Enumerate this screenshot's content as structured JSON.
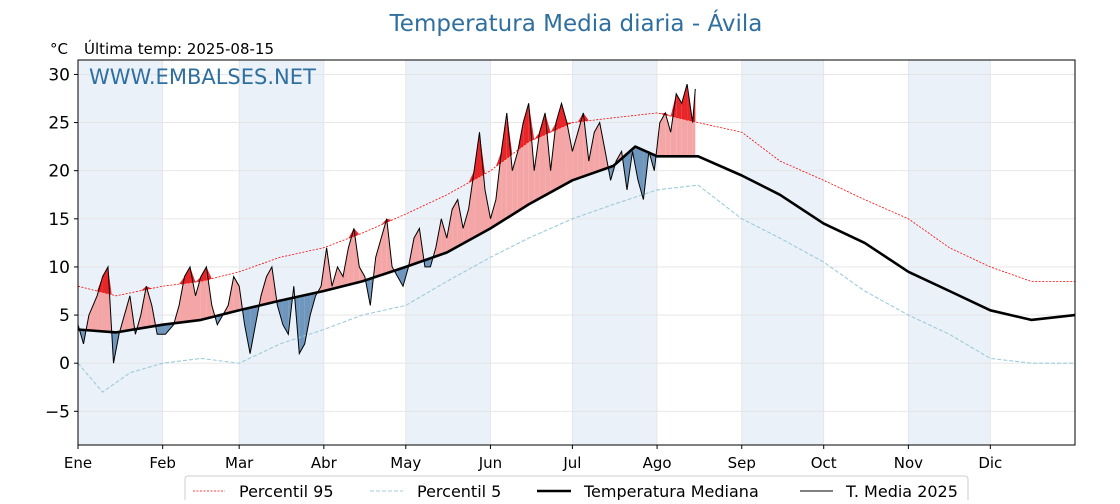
{
  "chart_data": {
    "type": "line",
    "title": "Temperatura Media diaria - Ávila",
    "unit_label": "°C",
    "subtitle": "Última temp: 2025-08-15",
    "watermark": "WWW.EMBALSES.NET",
    "ylim": [
      -8.5,
      31.5
    ],
    "yticks": [
      30,
      25,
      20,
      15,
      10,
      5,
      0,
      -5
    ],
    "ytick_labels": [
      "30",
      "25",
      "20",
      "15",
      "10",
      "5",
      "0",
      "−5"
    ],
    "xlim": [
      1,
      366
    ],
    "months": [
      {
        "label": "Ene",
        "day": 1
      },
      {
        "label": "Feb",
        "day": 32
      },
      {
        "label": "Mar",
        "day": 60
      },
      {
        "label": "Abr",
        "day": 91
      },
      {
        "label": "May",
        "day": 121
      },
      {
        "label": "Jun",
        "day": 152
      },
      {
        "label": "Jul",
        "day": 182
      },
      {
        "label": "Ago",
        "day": 213
      },
      {
        "label": "Sep",
        "day": 244
      },
      {
        "label": "Oct",
        "day": 274
      },
      {
        "label": "Nov",
        "day": 305
      },
      {
        "label": "Dic",
        "day": 335
      }
    ],
    "grid": true,
    "legend_position": "bottom",
    "legend": [
      {
        "label": "Percentil 95",
        "key": "p95"
      },
      {
        "label": "Percentil 5",
        "key": "p5"
      },
      {
        "label": "Temperatura Mediana",
        "key": "median"
      },
      {
        "label": "T. Media 2025",
        "key": "t2025"
      }
    ],
    "colors": {
      "p95": "#ff0000",
      "p5": "#9ecbdc",
      "median": "#000000",
      "t2025": "#000000",
      "above_fill": "#f4a6a6",
      "above_p95_fill": "#e8262a",
      "below_fill": "#6f97bd",
      "title": "#2f6f9f",
      "band": "#eaf1f9"
    },
    "series": [
      {
        "key": "p95",
        "name": "Percentil 95",
        "x": [
          1,
          15,
          32,
          46,
          60,
          75,
          91,
          105,
          121,
          136,
          152,
          166,
          182,
          197,
          213,
          228,
          244,
          258,
          274,
          289,
          305,
          320,
          335,
          350,
          366
        ],
        "y": [
          8,
          7,
          8,
          8.5,
          9.5,
          11,
          12,
          13.5,
          15.5,
          17.5,
          20,
          23,
          25,
          25.5,
          26,
          25,
          24,
          21,
          19,
          17,
          15,
          12,
          10,
          8.5,
          8.5
        ]
      },
      {
        "key": "p5",
        "name": "Percentil 5",
        "x": [
          1,
          10,
          20,
          32,
          46,
          60,
          75,
          91,
          105,
          121,
          136,
          152,
          166,
          182,
          197,
          213,
          228,
          244,
          258,
          274,
          289,
          305,
          320,
          335,
          350,
          366
        ],
        "y": [
          0,
          -3,
          -1,
          0,
          0.5,
          0,
          2,
          3.5,
          5,
          6,
          8.5,
          11,
          13,
          15,
          16.5,
          18,
          18.5,
          15,
          13,
          10.5,
          7.5,
          5,
          3,
          0.5,
          0,
          0
        ]
      },
      {
        "key": "median",
        "name": "Temperatura Mediana",
        "x": [
          1,
          15,
          32,
          46,
          60,
          75,
          91,
          105,
          121,
          136,
          152,
          166,
          182,
          197,
          205,
          213,
          228,
          244,
          258,
          274,
          289,
          305,
          320,
          335,
          350,
          366
        ],
        "y": [
          3.5,
          3.2,
          4,
          4.5,
          5.5,
          6.5,
          7.5,
          8.5,
          10,
          11.5,
          14,
          16.5,
          19,
          20.5,
          22.5,
          21.5,
          21.5,
          19.5,
          17.5,
          14.5,
          12.5,
          9.5,
          7.5,
          5.5,
          4.5,
          5
        ]
      },
      {
        "key": "t2025",
        "name": "T. Media 2025",
        "x": [
          1,
          3,
          5,
          8,
          10,
          12,
          14,
          16,
          18,
          20,
          22,
          24,
          26,
          28,
          30,
          33,
          36,
          38,
          40,
          42,
          44,
          46,
          48,
          50,
          52,
          54,
          56,
          58,
          60,
          62,
          64,
          66,
          68,
          70,
          72,
          74,
          76,
          78,
          80,
          82,
          84,
          86,
          88,
          90,
          92,
          94,
          96,
          98,
          100,
          102,
          104,
          106,
          108,
          110,
          112,
          114,
          116,
          118,
          120,
          122,
          124,
          126,
          128,
          130,
          132,
          134,
          136,
          138,
          140,
          142,
          144,
          146,
          148,
          150,
          152,
          154,
          156,
          158,
          160,
          162,
          164,
          166,
          168,
          170,
          172,
          174,
          176,
          178,
          180,
          182,
          184,
          186,
          188,
          190,
          192,
          194,
          196,
          198,
          200,
          202,
          204,
          206,
          208,
          210,
          212,
          214,
          216,
          218,
          220,
          222,
          224,
          226,
          227
        ],
        "y": [
          4,
          2,
          5,
          7,
          9,
          10,
          0,
          3,
          5,
          7,
          3,
          5,
          8,
          6,
          3,
          3,
          4,
          6,
          9,
          10,
          7,
          9,
          10,
          6,
          4,
          5,
          6,
          9,
          8,
          4,
          1,
          4,
          7,
          9,
          10,
          6,
          4,
          3,
          8,
          1,
          2,
          5,
          7,
          8,
          12,
          8,
          10,
          9,
          12,
          14,
          10,
          9,
          6,
          11,
          13,
          15,
          10,
          9,
          8,
          10,
          13,
          14,
          10,
          10,
          12,
          15,
          13,
          16,
          17,
          14,
          16,
          20,
          24,
          18,
          15,
          17,
          22,
          26,
          20,
          22,
          25,
          27,
          20,
          24,
          26,
          20,
          25,
          27,
          25,
          22,
          24,
          26,
          21,
          24,
          25,
          22,
          19,
          21,
          22,
          18,
          22,
          19,
          17,
          22,
          20,
          25,
          26,
          24,
          28,
          27,
          29,
          25,
          28.5
        ]
      }
    ]
  }
}
